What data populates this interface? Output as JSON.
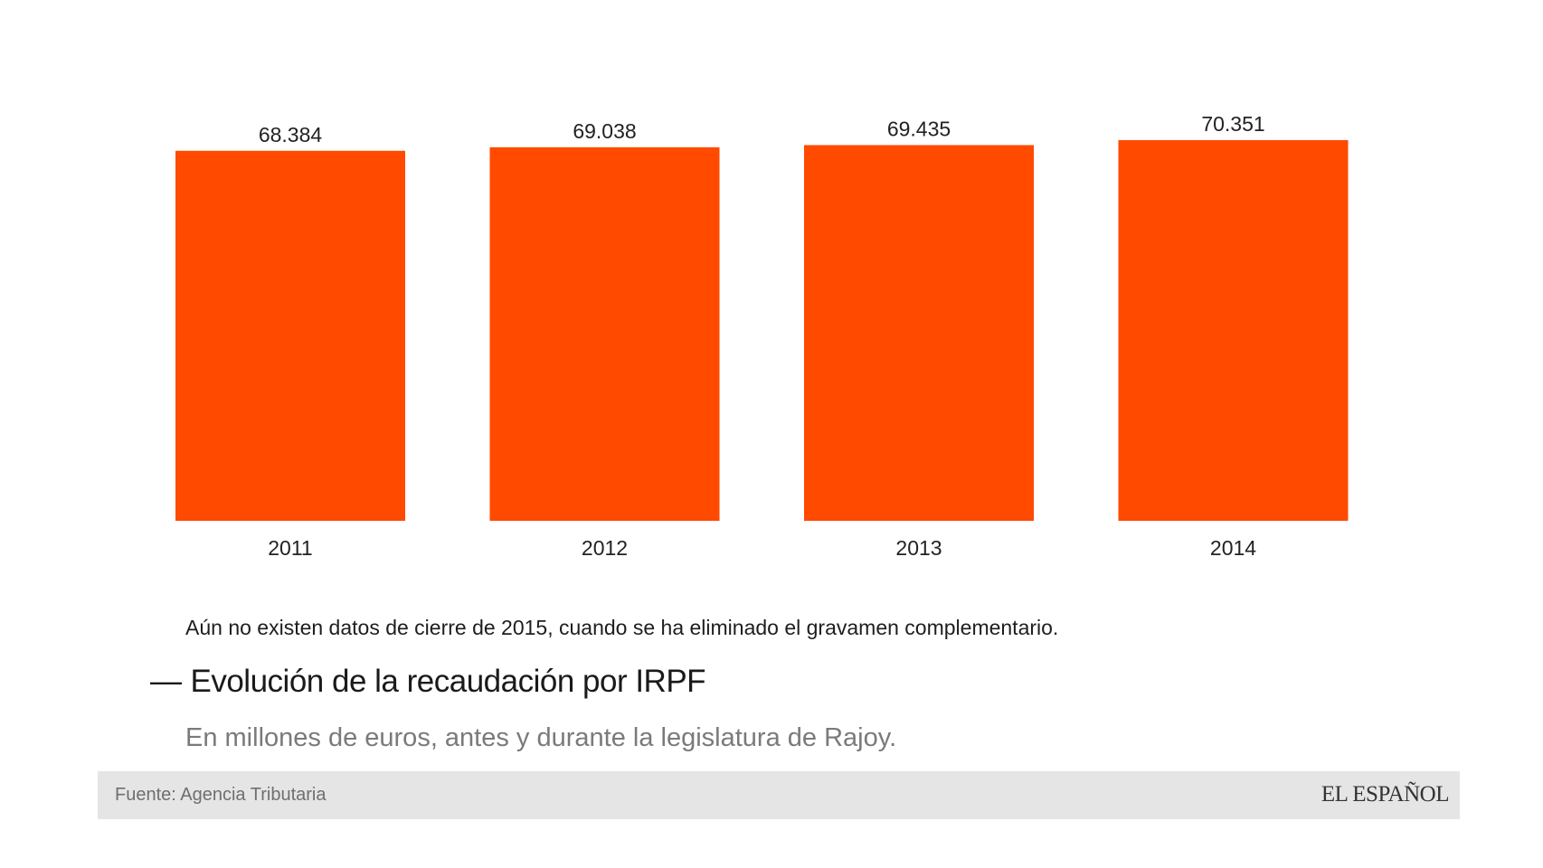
{
  "chart_data": {
    "type": "bar",
    "categories": [
      "2011",
      "2012",
      "2013",
      "2014"
    ],
    "values": [
      68384,
      69038,
      69435,
      70351
    ],
    "value_labels": [
      "68.384",
      "69.038",
      "69.435",
      "70.351"
    ],
    "title": "Evolución de la recaudación por IRPF",
    "subtitle": "En millones de euros, antes y durante la legislatura de Rajoy.",
    "xlabel": "",
    "ylabel": "",
    "ylim": [
      0,
      70351
    ],
    "grid": false,
    "legend": "none",
    "bar_color": "#ff4a00"
  },
  "note": "Aún no existen datos de cierre de 2015, cuando se ha eliminado el gravamen complementario.",
  "title_dash": "—",
  "source": "Fuente: Agencia Tributaria",
  "brand": "EL ESPAÑOL"
}
